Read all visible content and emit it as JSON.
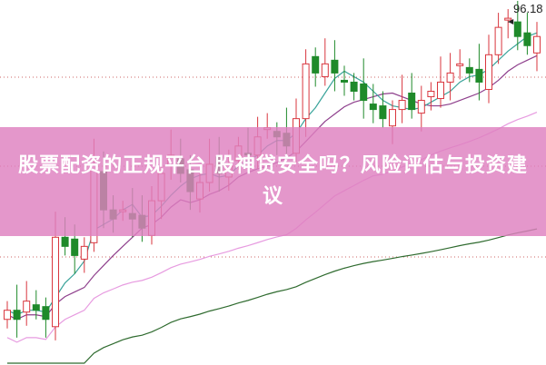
{
  "title": "股票配资的正规平台 股神贷安全吗？风险评估与投资建议",
  "chart_data": {
    "type": "candlestick",
    "max_label": "96.18",
    "ylim": [
      58,
      98
    ],
    "grid": "dotted horizontal",
    "colors": {
      "up": "#d9363e",
      "down": "#1f8a2a",
      "ma_short": "#3aa39a",
      "ma_mid": "#8e3f8c",
      "ma_long": "#e79be0",
      "ma_longest": "#2f6b2f"
    },
    "closes": [
      64,
      63,
      65,
      64,
      63,
      72,
      71,
      70,
      71,
      80,
      75,
      74,
      75,
      74,
      73,
      76,
      79,
      81,
      79,
      77,
      78,
      80,
      79,
      80,
      82,
      81,
      83,
      84,
      83,
      82,
      85,
      91,
      90,
      91,
      90,
      89,
      88,
      87,
      86,
      85,
      86,
      87,
      86,
      87,
      88,
      89,
      90,
      91,
      90,
      89,
      92,
      95,
      96,
      94,
      93,
      94
    ]
  }
}
